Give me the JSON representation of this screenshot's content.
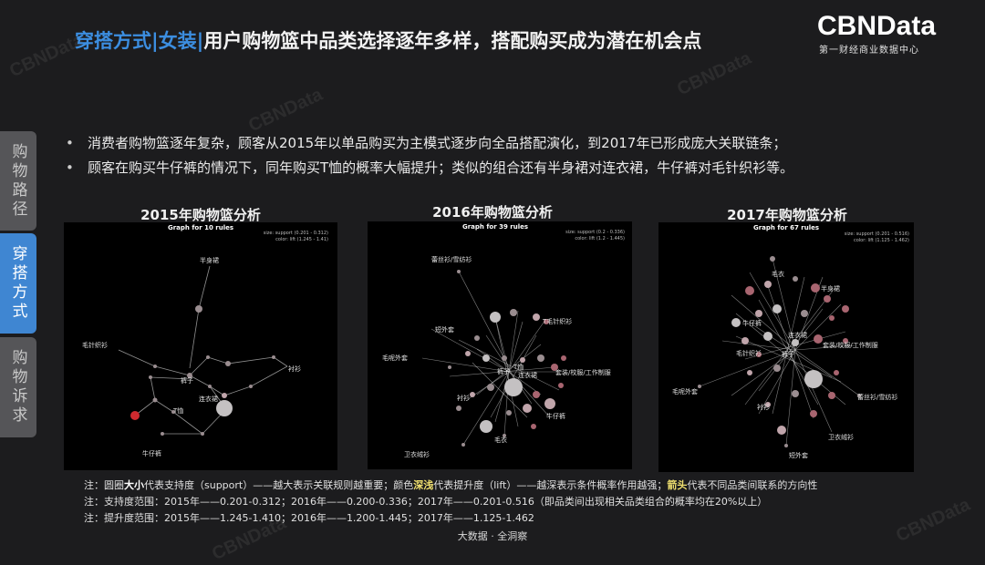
{
  "header": {
    "title_highlight": "穿搭方式|女装|",
    "title_rest": "用户购物篮中品类选择逐年多样，搭配购买成为潜在机会点",
    "logo": "CBNData",
    "logo_sub": "第一财经商业数据中心"
  },
  "side_tabs": [
    {
      "label": "购物路径",
      "active": false
    },
    {
      "label": "穿搭方式",
      "active": true
    },
    {
      "label": "购物诉求",
      "active": false
    }
  ],
  "bullets": [
    "消费者购物篮逐年复杂，顾客从2015年以单品购买为主模式逐步向全品搭配演化，到2017年已形成庞大关联链条；",
    "顾客在购买牛仔裤的情况下，同年购买T恤的概率大幅提升；类似的组合还有半身裙对连衣裙，牛仔裤对毛针织衫等。"
  ],
  "charts": [
    {
      "title": "2015年购物篮分析",
      "subtitle": "Graph for 10 rules",
      "legend_size": "size: support (0.201 - 0.312)",
      "legend_color": "color: lift (1.245 - 1.41)",
      "labels": {
        "skirt": "半身裙",
        "knit": "毛针织衫",
        "shirt": "衬衫",
        "jeans": "裤子",
        "dress": "连衣裙",
        "tshirt": "T恤",
        "denim": "牛仔裤"
      }
    },
    {
      "title": "2016年购物篮分析",
      "subtitle": "Graph for 39 rules",
      "legend_size": "size: support (0.2 - 0.336)",
      "legend_color": "color: lift (1.2 - 1.445)",
      "labels": {
        "lace": "蕾丝衫/雪纺衫",
        "short_coat": "短外套",
        "knit": "T毛针织衫",
        "wool": "毛呢外套",
        "pants": "裤子",
        "tshirt": "T恤",
        "dress": "连衣裙",
        "suit": "套装/校服/工作制服",
        "shirt": "衬衫",
        "denim": "牛仔裤",
        "sweater": "毛衣",
        "hoodie": "卫衣绒衫"
      }
    },
    {
      "title": "2017年购物篮分析",
      "subtitle": "Graph for 67 rules",
      "legend_size": "size: support (0.201 - 0.516)",
      "legend_color": "color: lift (1.125 - 1.462)",
      "labels": {
        "sweater": "毛衣",
        "skirt": "半身裙",
        "denim": "牛仔裤",
        "knit": "毛针织衫",
        "dress": "连衣裙",
        "pants": "裤子",
        "suit": "套装/校服/工作制服",
        "wool": "毛呢外套",
        "lace": "蕾丝衫/雪纺衫",
        "shirt": "衬衫",
        "hoodie": "卫衣绒衫",
        "short_coat": "短外套"
      }
    }
  ],
  "notes": {
    "line1_a": "注：圆圈",
    "line1_size": "大小",
    "line1_b": "代表支持度（support）——越大表示关联规则越重要；颜色",
    "line1_shade": "深浅",
    "line1_c": "代表提升度（lift）——越深表示条件概率作用越强；",
    "line1_arrow": "箭头",
    "line1_d": "代表不同品类间联系的方向性",
    "line2": "注：支持度范围：2015年——0.201-0.312；2016年——0.200-0.336；2017年——0.201-0.516（即品类间出现相关品类组合的概率均在20%以上）",
    "line3": "注：提升度范围：2015年——1.245-1.410；2016年——1.200-1.445；2017年——1.125-1.462"
  },
  "footer": "大数据 · 全洞察",
  "watermark": "CBNData"
}
